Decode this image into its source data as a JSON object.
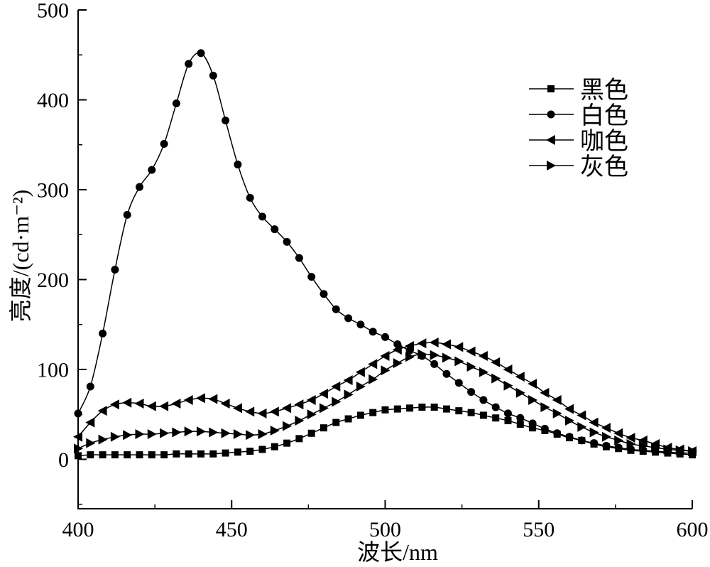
{
  "chart_data": {
    "type": "line",
    "xlabel": "波长/nm",
    "ylabel": "亮度/(cd·m⁻²)",
    "xlim": [
      400,
      600
    ],
    "ylim": [
      -55,
      500
    ],
    "xticks": [
      400,
      450,
      500,
      550,
      600
    ],
    "yticks": [
      0,
      100,
      200,
      300,
      400,
      500
    ],
    "grid": false,
    "legend_position": "top-right",
    "x": [
      400,
      404,
      408,
      412,
      416,
      420,
      424,
      428,
      432,
      436,
      440,
      444,
      448,
      452,
      456,
      460,
      464,
      468,
      472,
      476,
      480,
      484,
      488,
      492,
      496,
      500,
      504,
      508,
      512,
      516,
      520,
      524,
      528,
      532,
      536,
      540,
      544,
      548,
      552,
      556,
      560,
      564,
      568,
      572,
      576,
      580,
      584,
      588,
      592,
      596,
      600
    ],
    "series": [
      {
        "name": "黑色",
        "marker": "square",
        "color": "#000000",
        "values": [
          4,
          5,
          5,
          5,
          5,
          5,
          5,
          5,
          6,
          6,
          6,
          6,
          7,
          8,
          9,
          11,
          14,
          18,
          23,
          29,
          35,
          41,
          45,
          49,
          52,
          55,
          56,
          57,
          58,
          58,
          56,
          54,
          52,
          49,
          46,
          43,
          39,
          35,
          32,
          28,
          24,
          21,
          17,
          14,
          12,
          10,
          9,
          8,
          7,
          6,
          5
        ]
      },
      {
        "name": "白色",
        "marker": "circle",
        "color": "#000000",
        "values": [
          51,
          81,
          140,
          211,
          272,
          303,
          322,
          351,
          396,
          440,
          452,
          427,
          377,
          328,
          291,
          270,
          256,
          242,
          224,
          203,
          184,
          167,
          157,
          150,
          142,
          136,
          128,
          121,
          115,
          106,
          95,
          85,
          75,
          66,
          58,
          51,
          46,
          40,
          34,
          29,
          25,
          21,
          18,
          15,
          13,
          11,
          10,
          9,
          8,
          7,
          7
        ]
      },
      {
        "name": "咖色",
        "marker": "triangle-left",
        "color": "#000000",
        "values": [
          25,
          41,
          54,
          61,
          63,
          62,
          59,
          59,
          62,
          66,
          68,
          67,
          62,
          57,
          53,
          51,
          53,
          57,
          61,
          66,
          73,
          81,
          88,
          97,
          106,
          115,
          122,
          126,
          129,
          130,
          128,
          125,
          120,
          115,
          108,
          100,
          92,
          84,
          74,
          66,
          56,
          49,
          41,
          35,
          29,
          24,
          21,
          17,
          13,
          11,
          9
        ]
      },
      {
        "name": "灰色",
        "marker": "triangle-right",
        "color": "#000000",
        "values": [
          12,
          18,
          22,
          25,
          27,
          28,
          28,
          29,
          30,
          31,
          31,
          30,
          29,
          28,
          27,
          28,
          32,
          37,
          43,
          50,
          57,
          64,
          72,
          81,
          89,
          99,
          107,
          114,
          117,
          116,
          113,
          109,
          103,
          97,
          90,
          82,
          74,
          66,
          58,
          51,
          43,
          36,
          30,
          25,
          21,
          17,
          15,
          13,
          11,
          10,
          9
        ]
      }
    ]
  }
}
